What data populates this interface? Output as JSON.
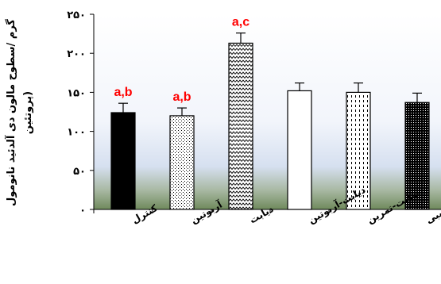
{
  "chart_data": {
    "type": "bar",
    "categories": [
      "کنترل",
      "آربوتین",
      "دیابت",
      "دیابت-آربوتین",
      "دیابت-تمرین",
      "دیابت -ترکیبی"
    ],
    "values": [
      124,
      120,
      213,
      152,
      150,
      137
    ],
    "errors": [
      12,
      10,
      13,
      10,
      12,
      12
    ],
    "annotations": [
      "a,b",
      "a,b",
      "a,c",
      "",
      "",
      ""
    ],
    "ylabel_lines": [
      "گرم /سطوح مالون دی آلدئید نانومول",
      "(پروتئین"
    ],
    "yticks": [
      0,
      50,
      100,
      150,
      200,
      250
    ],
    "ytick_labels": [
      "۰",
      "۵۰",
      "۱۰۰",
      "۱۵۰",
      "۲۰۰",
      "۲۵۰"
    ],
    "ylim": [
      0,
      250
    ],
    "grid": false,
    "bar_fills": [
      "solid-black",
      "stipple",
      "zigzag",
      "white",
      "dashed",
      "dense-dots"
    ],
    "colors": {
      "annotation": "#ff0000",
      "bar_edge": "#000000",
      "bg_top": "#ffffff",
      "bg_bottom": "#6f8a5c"
    }
  }
}
